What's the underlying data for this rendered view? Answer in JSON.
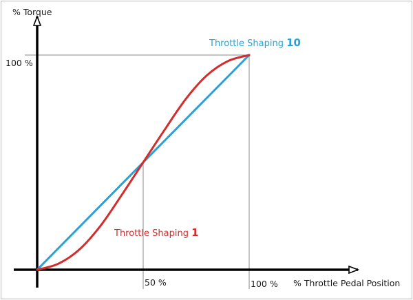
{
  "chart_data": {
    "type": "line",
    "ylabel": "% Torque",
    "xlabel": "% Throttle Pedal Position",
    "xlim": [
      0,
      100
    ],
    "ylim": [
      0,
      100
    ],
    "x_tick_labels": [
      "50 %",
      "100 %"
    ],
    "x_ticks": [
      50,
      100
    ],
    "y_tick_labels": [
      "100 %"
    ],
    "y_ticks": [
      100
    ],
    "series": [
      {
        "name": "Throttle Shaping 10",
        "label_text": "Throttle Shaping ",
        "label_number": "10",
        "color": "#2aa0d6",
        "x": [
          0,
          100
        ],
        "y": [
          0,
          100
        ]
      },
      {
        "name": "Throttle Shaping 1",
        "label_text": "Throttle Shaping ",
        "label_number": "1",
        "color": "#d42b2b",
        "x": [
          0,
          10,
          20,
          30,
          40,
          50,
          60,
          70,
          80,
          90,
          100
        ],
        "y": [
          0,
          2.8,
          9.5,
          20.6,
          35.0,
          50,
          65.0,
          79.4,
          90.5,
          97.2,
          100
        ]
      }
    ],
    "guide_lines": true,
    "grid": false,
    "legend": "inline-labels"
  }
}
